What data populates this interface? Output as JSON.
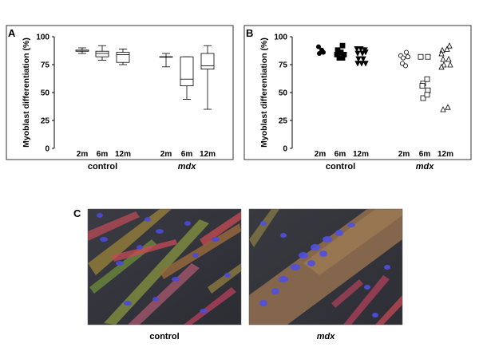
{
  "panels": {
    "A": "A",
    "B": "B",
    "C": "C"
  },
  "chart_data": [
    {
      "type": "box",
      "panel": "A",
      "ylabel": "Myoblast differentiation (%)",
      "ylim": [
        0,
        100
      ],
      "yticks": [
        0,
        25,
        50,
        75,
        100
      ],
      "categories": [
        "2m",
        "6m",
        "12m",
        "2m",
        "6m",
        "12m"
      ],
      "groups": [
        "control",
        "mdx"
      ],
      "boxes": [
        {
          "group": "control",
          "age": "2m",
          "min": 85,
          "q1": 87,
          "median": 87,
          "q3": 88,
          "max": 90
        },
        {
          "group": "control",
          "age": "6m",
          "min": 79,
          "q1": 82,
          "median": 85,
          "q3": 87,
          "max": 92
        },
        {
          "group": "control",
          "age": "12m",
          "min": 75,
          "q1": 77,
          "median": 84,
          "q3": 86,
          "max": 89
        },
        {
          "group": "mdx",
          "age": "2m",
          "min": 73,
          "q1": 82,
          "median": 82,
          "q3": 82,
          "max": 85
        },
        {
          "group": "mdx",
          "age": "6m",
          "min": 44,
          "q1": 56,
          "median": 62,
          "q3": 82,
          "max": 82
        },
        {
          "group": "mdx",
          "age": "12m",
          "min": 35,
          "q1": 71,
          "median": 74,
          "q3": 85,
          "max": 92
        }
      ]
    },
    {
      "type": "scatter",
      "panel": "B",
      "ylabel": "Myoblast differentiation (%)",
      "ylim": [
        0,
        100
      ],
      "yticks": [
        0,
        25,
        50,
        75,
        100
      ],
      "categories": [
        "2m",
        "6m",
        "12m",
        "2m",
        "6m",
        "12m"
      ],
      "groups": [
        "control",
        "mdx"
      ],
      "series": [
        {
          "group": "control",
          "age": "2m",
          "marker": "circle-filled",
          "points": [
            [
              -2,
              91
            ],
            [
              2,
              88
            ],
            [
              -1,
              85
            ],
            [
              4,
              86
            ]
          ]
        },
        {
          "group": "control",
          "age": "6m",
          "marker": "square-filled",
          "points": [
            [
              -3,
              88
            ],
            [
              3,
              92
            ],
            [
              -4,
              84
            ],
            [
              1,
              86
            ],
            [
              5,
              84
            ],
            [
              -1,
              81
            ],
            [
              3,
              81
            ]
          ]
        },
        {
          "group": "control",
          "age": "12m",
          "marker": "triangle-down-filled",
          "points": [
            [
              -5,
              89
            ],
            [
              0,
              89
            ],
            [
              5,
              88
            ],
            [
              -4,
              85
            ],
            [
              2,
              85
            ],
            [
              6,
              86
            ],
            [
              -3,
              80
            ],
            [
              3,
              80
            ],
            [
              -4,
              76
            ],
            [
              1,
              76
            ],
            [
              6,
              76
            ]
          ]
        },
        {
          "group": "mdx",
          "age": "2m",
          "marker": "circle-open",
          "points": [
            [
              -4,
              83
            ],
            [
              3,
              86
            ],
            [
              -1,
              81
            ],
            [
              5,
              82
            ],
            [
              -2,
              76
            ],
            [
              2,
              74
            ]
          ]
        },
        {
          "group": "mdx",
          "age": "6m",
          "marker": "square-open",
          "points": [
            [
              -5,
              82
            ],
            [
              4,
              82
            ],
            [
              -2,
              58
            ],
            [
              3,
              62
            ],
            [
              -3,
              56
            ],
            [
              4,
              52
            ],
            [
              -2,
              45
            ],
            [
              3,
              48
            ]
          ]
        },
        {
          "group": "mdx",
          "age": "12m",
          "marker": "triangle-up-open",
          "points": [
            [
              -4,
              88
            ],
            [
              5,
              92
            ],
            [
              -5,
              85
            ],
            [
              2,
              89
            ],
            [
              -3,
              80
            ],
            [
              4,
              80
            ],
            [
              -2,
              75
            ],
            [
              -5,
              73
            ],
            [
              6,
              75
            ],
            [
              -3,
              35
            ],
            [
              3,
              37
            ]
          ]
        }
      ]
    }
  ],
  "micrographs": {
    "control_label": "control",
    "mdx_label": "mdx"
  }
}
